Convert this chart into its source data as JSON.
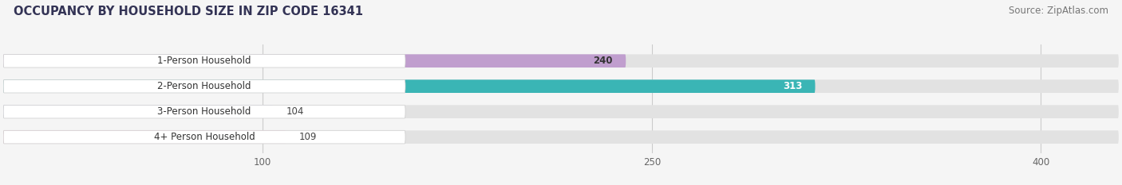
{
  "title": "OCCUPANCY BY HOUSEHOLD SIZE IN ZIP CODE 16341",
  "source": "Source: ZipAtlas.com",
  "categories": [
    "1-Person Household",
    "2-Person Household",
    "3-Person Household",
    "4+ Person Household"
  ],
  "values": [
    240,
    313,
    104,
    109
  ],
  "bar_colors": [
    "#c09ece",
    "#3ab5b5",
    "#b8bcee",
    "#f5a8c0"
  ],
  "bar_text_colors": [
    "#333333",
    "#ffffff",
    "#333333",
    "#333333"
  ],
  "xlim_data": [
    0,
    430
  ],
  "xticks": [
    100,
    250,
    400
  ],
  "background_color": "#f5f5f5",
  "bar_bg_color": "#e2e2e2",
  "label_bg_color": "#ffffff",
  "title_color": "#333355",
  "source_color": "#777777",
  "title_fontsize": 10.5,
  "source_fontsize": 8.5,
  "label_fontsize": 8.5,
  "value_fontsize": 8.5,
  "bar_height": 0.52,
  "figsize": [
    14.06,
    2.33
  ],
  "dpi": 100
}
